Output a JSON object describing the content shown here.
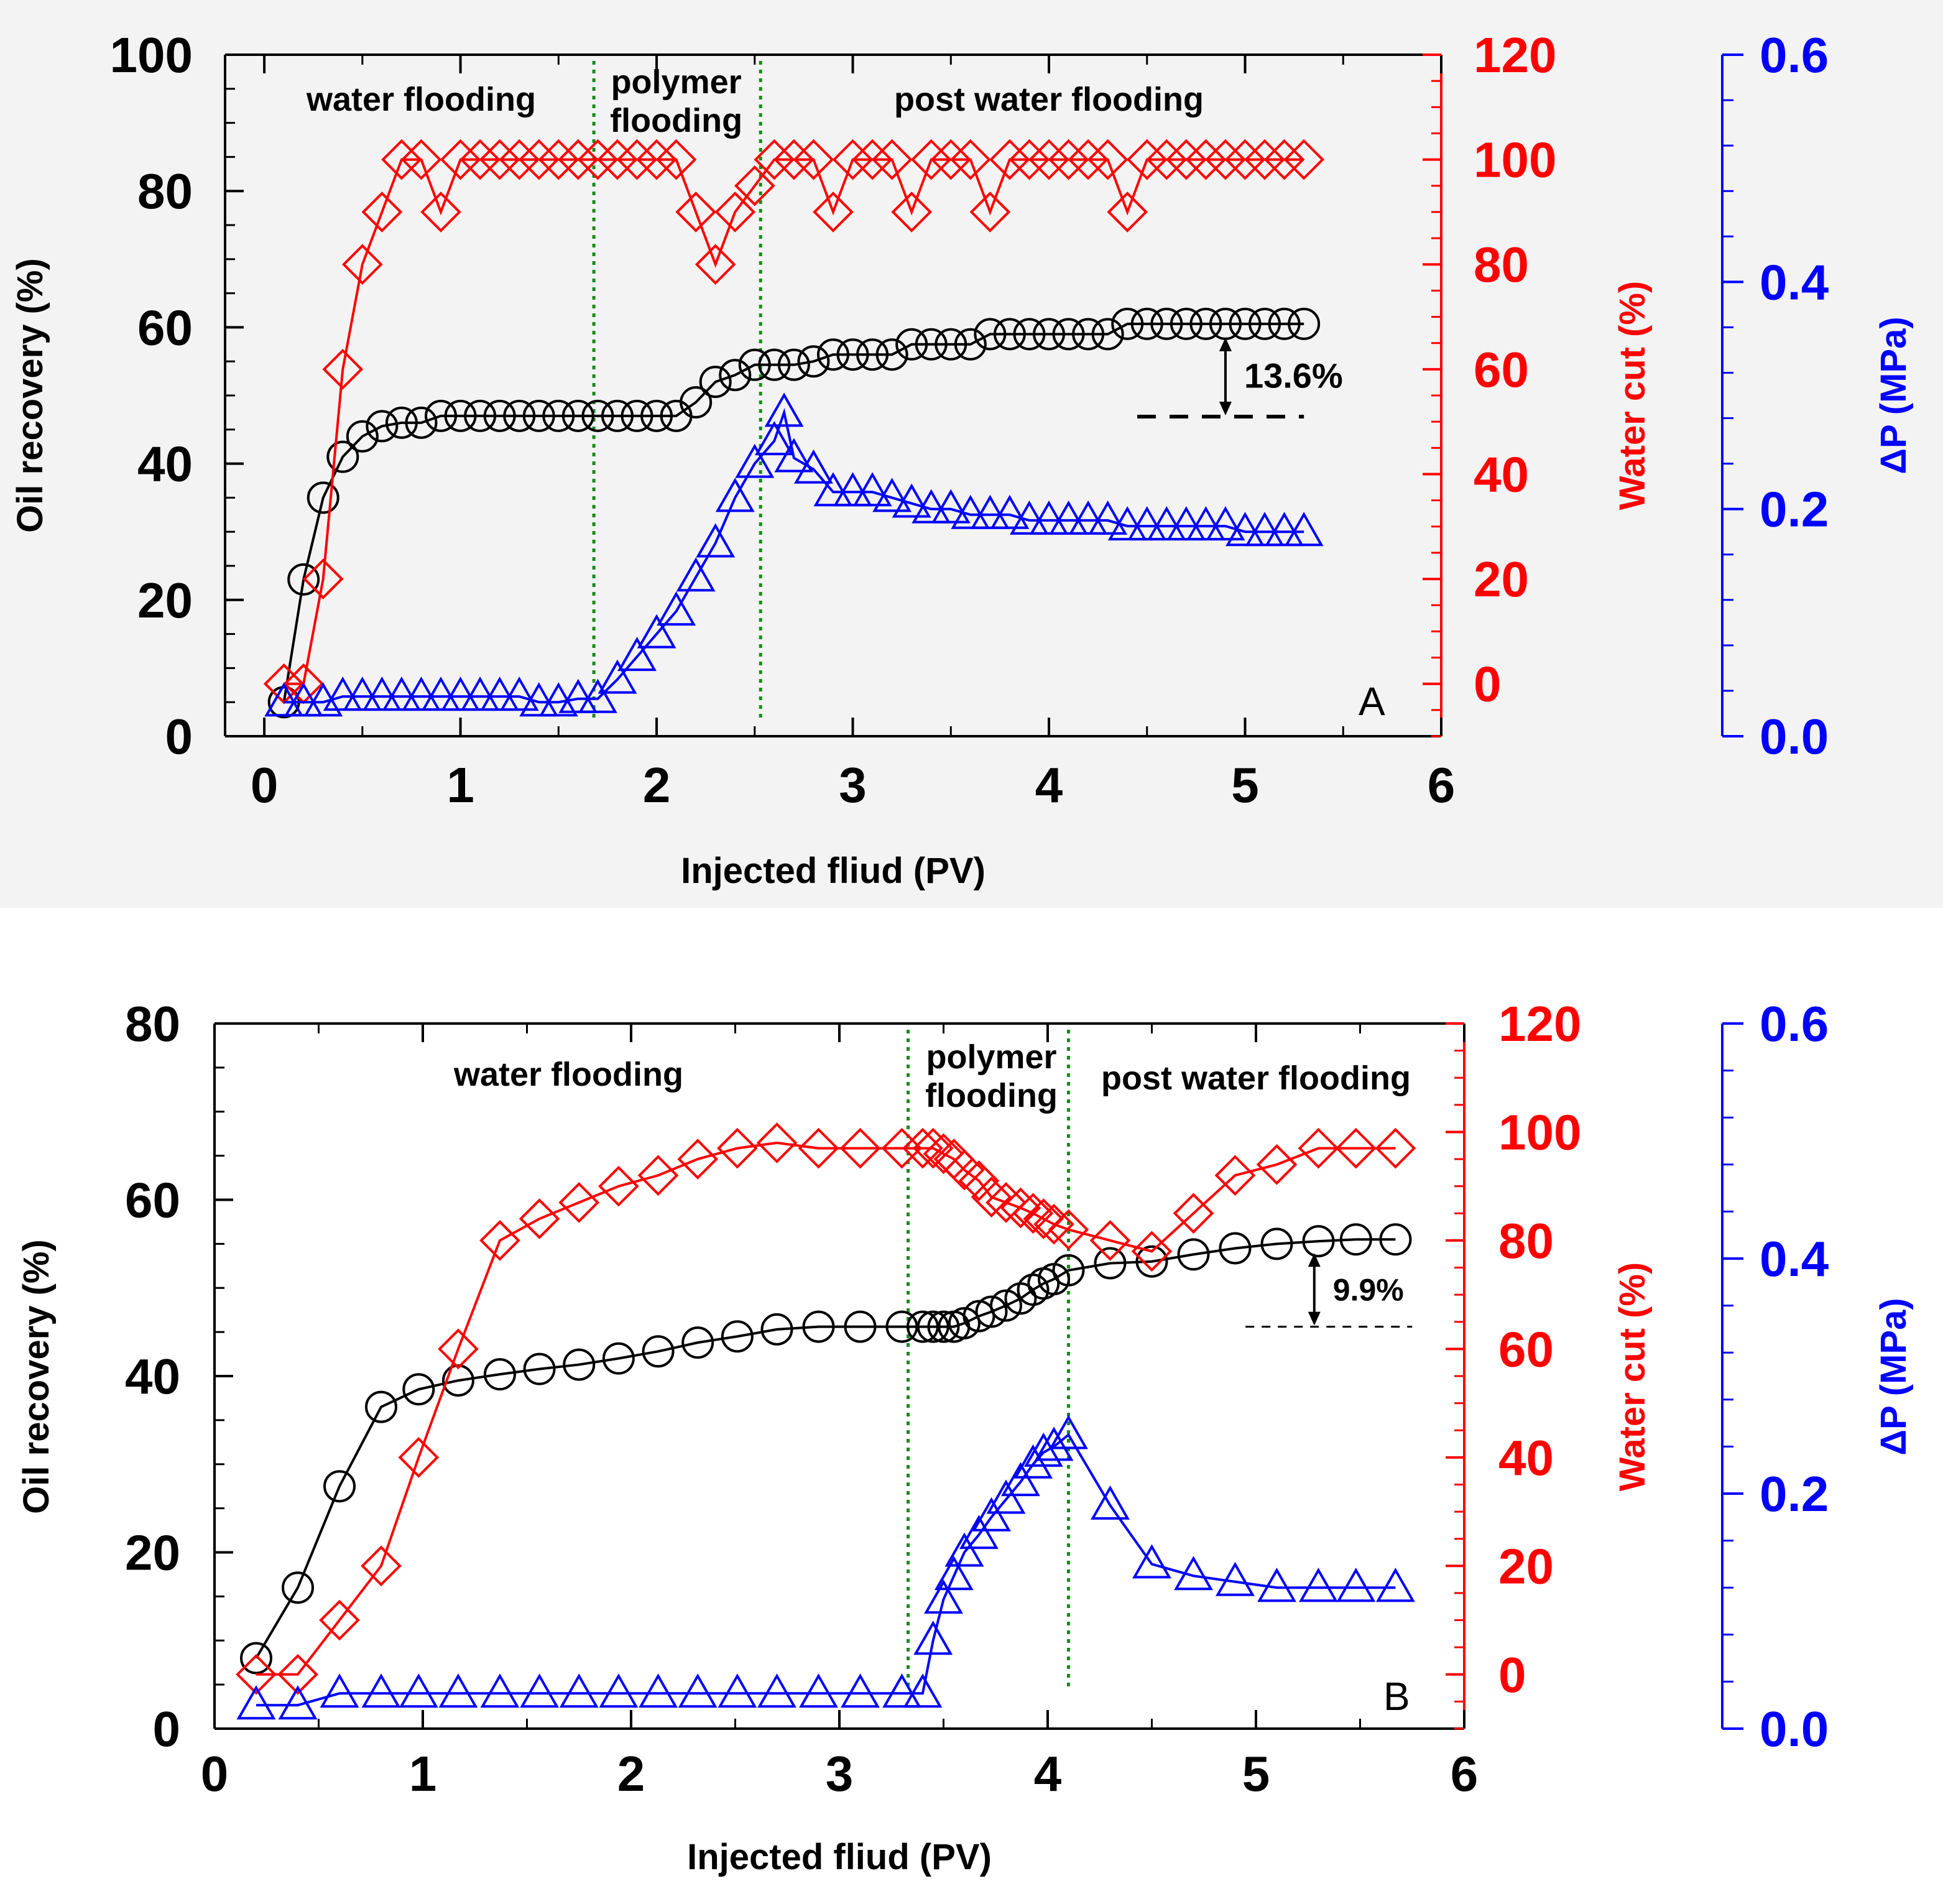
{
  "colors": {
    "oil": "#000000",
    "water": "#ff0000",
    "pressure": "#0000ff",
    "divider": "#1a8a1a"
  },
  "chart_data": [
    {
      "id": "A",
      "type": "line",
      "panel_label": "A",
      "xlabel": "Injected fliud (PV)",
      "ylabel_left": "Oil recovery (%)",
      "ylabel_right1": "Water cut (%)",
      "ylabel_right2": "ΔP (MPa)",
      "xlim": [
        -0.2,
        6
      ],
      "xticks": [
        0,
        1,
        2,
        3,
        4,
        5,
        6
      ],
      "ylim_left": [
        0,
        100
      ],
      "yticks_left": [
        0,
        20,
        40,
        60,
        80,
        100
      ],
      "ylim_right1": [
        -10,
        120
      ],
      "yticks_right1": [
        0,
        20,
        40,
        60,
        80,
        100,
        120
      ],
      "ylim_right2": [
        0,
        0.6
      ],
      "yticks_right2": [
        "0.0",
        "0.2",
        "0.4",
        "0.6"
      ],
      "stage_lines_x": [
        1.68,
        2.53
      ],
      "stage_labels": [
        {
          "text": "water flooding",
          "x": 0.8
        },
        {
          "text": [
            "polymer",
            "flooding"
          ],
          "x": 2.1
        },
        {
          "text": "post water flooding",
          "x": 4.0
        }
      ],
      "annotation": {
        "text": "13.6%",
        "x": 4.9,
        "y_from": 60.5,
        "y_to": 46.9,
        "ref_line_x": [
          4.45,
          5.3
        ]
      },
      "series": [
        {
          "name": "Oil recovery",
          "axis": "left",
          "marker": "circle",
          "x": [
            0.1,
            0.2,
            0.3,
            0.4,
            0.5,
            0.6,
            0.7,
            0.8,
            0.9,
            1.0,
            1.1,
            1.2,
            1.3,
            1.4,
            1.5,
            1.6,
            1.7,
            1.8,
            1.9,
            2.0,
            2.1,
            2.2,
            2.3,
            2.4,
            2.5,
            2.6,
            2.7,
            2.8,
            2.9,
            3.0,
            3.1,
            3.2,
            3.3,
            3.4,
            3.5,
            3.6,
            3.7,
            3.8,
            3.9,
            4.0,
            4.1,
            4.2,
            4.3,
            4.4,
            4.5,
            4.6,
            4.7,
            4.8,
            4.9,
            5.0,
            5.1,
            5.2,
            5.3
          ],
          "y": [
            5,
            23,
            35,
            41,
            44,
            45.5,
            46,
            46,
            47,
            47,
            47,
            47,
            47,
            47,
            47,
            47,
            47,
            47,
            47,
            47,
            47,
            49,
            52,
            53,
            54.5,
            54.5,
            54.5,
            55,
            56,
            56,
            56,
            56,
            57.5,
            57.5,
            57.5,
            57.5,
            59,
            59,
            59,
            59,
            59,
            59,
            59,
            60.5,
            60.5,
            60.5,
            60.5,
            60.5,
            60.5,
            60.5,
            60.5,
            60.5,
            60.5
          ]
        },
        {
          "name": "Water cut",
          "axis": "right1",
          "marker": "diamond",
          "x": [
            0.1,
            0.2,
            0.3,
            0.4,
            0.5,
            0.6,
            0.7,
            0.8,
            0.9,
            1.0,
            1.1,
            1.2,
            1.3,
            1.4,
            1.5,
            1.6,
            1.7,
            1.8,
            1.9,
            2.0,
            2.1,
            2.2,
            2.3,
            2.4,
            2.5,
            2.6,
            2.7,
            2.8,
            2.9,
            3.0,
            3.1,
            3.2,
            3.3,
            3.4,
            3.5,
            3.6,
            3.7,
            3.8,
            3.9,
            4.0,
            4.1,
            4.2,
            4.3,
            4.4,
            4.5,
            4.6,
            4.7,
            4.8,
            4.9,
            5.0,
            5.1,
            5.2,
            5.3
          ],
          "y": [
            0,
            0,
            20,
            60,
            80,
            90,
            100,
            100,
            90,
            100,
            100,
            100,
            100,
            100,
            100,
            100,
            100,
            100,
            100,
            100,
            100,
            90,
            80,
            90,
            95,
            100,
            100,
            100,
            90,
            100,
            100,
            100,
            90,
            100,
            100,
            100,
            90,
            100,
            100,
            100,
            100,
            100,
            100,
            90,
            100,
            100,
            100,
            100,
            100,
            100,
            100,
            100,
            100
          ]
        },
        {
          "name": "Pressure drop",
          "axis": "right2",
          "marker": "triangle",
          "x": [
            0.1,
            0.2,
            0.3,
            0.4,
            0.5,
            0.6,
            0.7,
            0.8,
            0.9,
            1.0,
            1.1,
            1.2,
            1.3,
            1.4,
            1.5,
            1.6,
            1.7,
            1.8,
            1.9,
            2.0,
            2.1,
            2.2,
            2.3,
            2.4,
            2.5,
            2.6,
            2.65,
            2.7,
            2.8,
            2.9,
            3.0,
            3.1,
            3.2,
            3.3,
            3.4,
            3.5,
            3.6,
            3.7,
            3.8,
            3.9,
            4.0,
            4.1,
            4.2,
            4.3,
            4.4,
            4.5,
            4.6,
            4.7,
            4.8,
            4.9,
            5.0,
            5.1,
            5.2,
            5.3
          ],
          "y": [
            0.03,
            0.03,
            0.03,
            0.035,
            0.035,
            0.035,
            0.035,
            0.035,
            0.035,
            0.035,
            0.035,
            0.035,
            0.035,
            0.03,
            0.03,
            0.033,
            0.033,
            0.05,
            0.07,
            0.09,
            0.11,
            0.14,
            0.17,
            0.21,
            0.24,
            0.26,
            0.285,
            0.245,
            0.235,
            0.215,
            0.215,
            0.215,
            0.21,
            0.205,
            0.2,
            0.2,
            0.195,
            0.195,
            0.195,
            0.19,
            0.19,
            0.19,
            0.19,
            0.19,
            0.185,
            0.185,
            0.185,
            0.185,
            0.185,
            0.185,
            0.18,
            0.18,
            0.18,
            0.18
          ]
        }
      ]
    },
    {
      "id": "B",
      "type": "line",
      "panel_label": "B",
      "xlabel": "Injected fliud (PV)",
      "ylabel_left": "Oil recovery (%)",
      "ylabel_right1": "Water cut (%)",
      "ylabel_right2": "ΔP (MPa)",
      "xlim": [
        0,
        6
      ],
      "xticks": [
        0,
        1,
        2,
        3,
        4,
        5,
        6
      ],
      "ylim_left": [
        0,
        80
      ],
      "yticks_left": [
        0,
        20,
        40,
        60,
        80
      ],
      "ylim_right1": [
        -10,
        120
      ],
      "yticks_right1": [
        0,
        20,
        40,
        60,
        80,
        100,
        120
      ],
      "ylim_right2": [
        0,
        0.6
      ],
      "yticks_right2": [
        "0.0",
        "0.2",
        "0.4",
        "0.6"
      ],
      "stage_lines_x": [
        3.33,
        4.1
      ],
      "stage_labels": [
        {
          "text": "water flooding",
          "x": 1.7
        },
        {
          "text": [
            "polymer",
            "flooding"
          ],
          "x": 3.73
        },
        {
          "text": "post water flooding",
          "x": 5.0
        }
      ],
      "annotation": {
        "text": "9.9%",
        "x": 5.28,
        "y_from": 55.5,
        "y_to": 45.6,
        "ref_line_x": [
          4.95,
          5.75
        ]
      },
      "series": [
        {
          "name": "Oil recovery",
          "axis": "left",
          "marker": "circle",
          "x": [
            0.2,
            0.4,
            0.6,
            0.8,
            0.98,
            1.17,
            1.37,
            1.56,
            1.75,
            1.94,
            2.13,
            2.32,
            2.51,
            2.7,
            2.9,
            3.1,
            3.3,
            3.4,
            3.45,
            3.5,
            3.55,
            3.6,
            3.67,
            3.73,
            3.8,
            3.87,
            3.93,
            3.98,
            4.03,
            4.1,
            4.3,
            4.5,
            4.7,
            4.9,
            5.1,
            5.3,
            5.48,
            5.67
          ],
          "y": [
            8,
            16,
            27.5,
            36.5,
            38.5,
            39.5,
            40.2,
            40.8,
            41.3,
            42,
            42.8,
            43.8,
            44.5,
            45.3,
            45.6,
            45.6,
            45.6,
            45.6,
            45.6,
            45.6,
            45.6,
            46,
            46.8,
            47.3,
            48,
            48.8,
            49.8,
            50.5,
            51,
            52,
            52.8,
            53,
            53.8,
            54.5,
            55,
            55.3,
            55.5,
            55.5
          ]
        },
        {
          "name": "Water cut",
          "axis": "right1",
          "marker": "diamond",
          "x": [
            0.2,
            0.4,
            0.6,
            0.8,
            0.98,
            1.17,
            1.37,
            1.56,
            1.75,
            1.94,
            2.13,
            2.32,
            2.51,
            2.7,
            2.9,
            3.1,
            3.3,
            3.4,
            3.45,
            3.5,
            3.55,
            3.6,
            3.67,
            3.73,
            3.8,
            3.87,
            3.93,
            3.98,
            4.03,
            4.1,
            4.3,
            4.5,
            4.7,
            4.9,
            5.1,
            5.3,
            5.48,
            5.67
          ],
          "y": [
            0,
            0,
            10,
            20,
            40,
            60,
            80,
            84,
            87,
            90,
            92,
            95,
            97,
            98,
            97,
            97,
            97,
            97,
            97,
            96,
            95,
            93,
            91,
            88,
            87,
            86,
            85,
            84,
            83,
            82,
            80,
            78,
            85,
            92,
            94,
            97,
            97,
            97
          ]
        },
        {
          "name": "Pressure drop",
          "axis": "right2",
          "marker": "triangle",
          "x": [
            0.2,
            0.4,
            0.6,
            0.8,
            0.98,
            1.17,
            1.37,
            1.56,
            1.75,
            1.94,
            2.13,
            2.32,
            2.51,
            2.7,
            2.9,
            3.1,
            3.3,
            3.4,
            3.45,
            3.5,
            3.55,
            3.6,
            3.67,
            3.73,
            3.8,
            3.87,
            3.93,
            3.98,
            4.03,
            4.1,
            4.3,
            4.5,
            4.7,
            4.9,
            5.1,
            5.3,
            5.48,
            5.67
          ],
          "y": [
            0.02,
            0.02,
            0.03,
            0.03,
            0.03,
            0.03,
            0.03,
            0.03,
            0.03,
            0.03,
            0.03,
            0.03,
            0.03,
            0.03,
            0.03,
            0.03,
            0.03,
            0.03,
            0.075,
            0.11,
            0.13,
            0.15,
            0.165,
            0.18,
            0.195,
            0.21,
            0.225,
            0.235,
            0.24,
            0.25,
            0.19,
            0.14,
            0.13,
            0.125,
            0.12,
            0.12,
            0.12,
            0.12
          ]
        }
      ]
    }
  ]
}
